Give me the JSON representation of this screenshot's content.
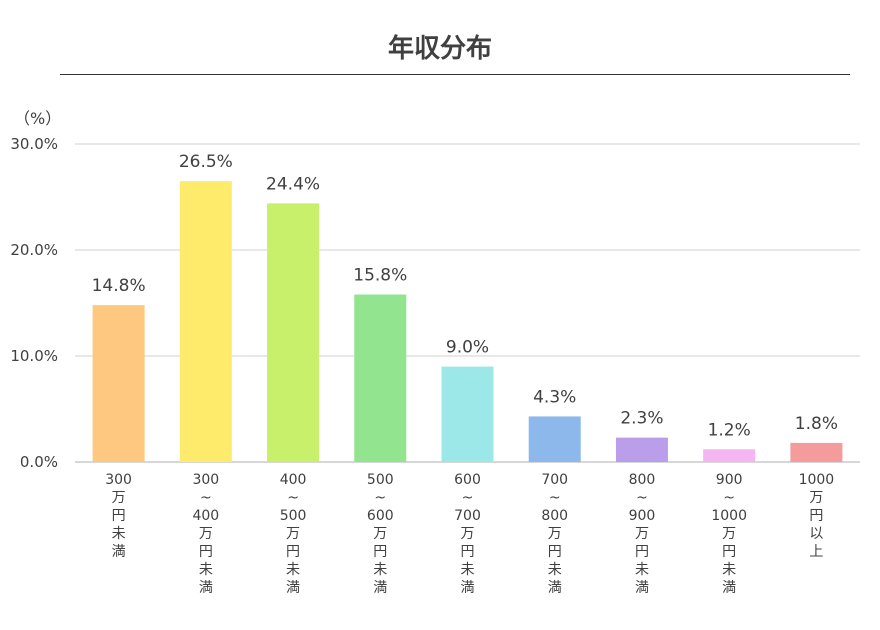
{
  "chart_data": {
    "type": "bar",
    "title": "年収分布",
    "unit_label": "（%）",
    "y_ticks": [
      "0.0%",
      "10.0%",
      "20.0%",
      "30.0%"
    ],
    "ylim": [
      0,
      30
    ],
    "grid": true,
    "categories": [
      "300万円未満",
      "300～400万円未満",
      "400～500万円未満",
      "500～600万円未満",
      "600～700万円未満",
      "700～800万円未満",
      "800～900万円未満",
      "900～1000万円未満",
      "1000万円以上"
    ],
    "category_label_lines": [
      [
        "300",
        "万",
        "円",
        "未",
        "満"
      ],
      [
        "300",
        "~",
        "400",
        "万",
        "円",
        "未",
        "満"
      ],
      [
        "400",
        "~",
        "500",
        "万",
        "円",
        "未",
        "満"
      ],
      [
        "500",
        "~",
        "600",
        "万",
        "円",
        "未",
        "満"
      ],
      [
        "600",
        "~",
        "700",
        "万",
        "円",
        "未",
        "満"
      ],
      [
        "700",
        "~",
        "800",
        "万",
        "円",
        "未",
        "満"
      ],
      [
        "800",
        "~",
        "900",
        "万",
        "円",
        "未",
        "満"
      ],
      [
        "900",
        "~",
        "1000",
        "万",
        "円",
        "未",
        "満"
      ],
      [
        "1000",
        "万",
        "円",
        "以",
        "上"
      ]
    ],
    "values": [
      14.8,
      26.5,
      24.4,
      15.8,
      9.0,
      4.3,
      2.3,
      1.2,
      1.8
    ],
    "value_labels": [
      "14.8%",
      "26.5%",
      "24.4%",
      "15.8%",
      "9.0%",
      "4.3%",
      "2.3%",
      "1.2%",
      "1.8%"
    ],
    "colors": [
      "#FFC880",
      "#FFEB6B",
      "#C8F06B",
      "#92E48E",
      "#9CE8E8",
      "#8CB8EC",
      "#BB9EEA",
      "#F5B4F2",
      "#F49C9C"
    ]
  }
}
